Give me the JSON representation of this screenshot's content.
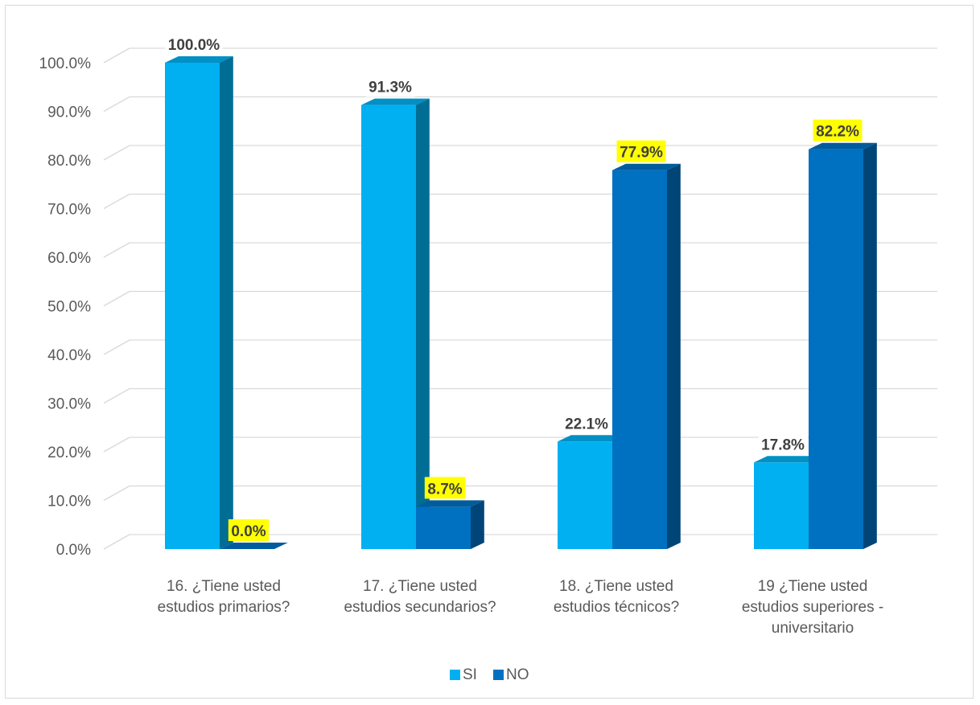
{
  "chart_data": {
    "type": "bar",
    "style": "3d-clustered-column",
    "categories": [
      [
        "16.   ¿Tiene usted",
        "estudios primarios?"
      ],
      [
        "17.   ¿Tiene usted",
        "estudios secundarios?"
      ],
      [
        "18.   ¿Tiene usted",
        "estudios técnicos?"
      ],
      [
        "19 ¿Tiene usted",
        "estudios superiores -",
        "universitario"
      ]
    ],
    "series": [
      {
        "name": "SI",
        "values": [
          100.0,
          91.3,
          22.1,
          17.8
        ],
        "color": "#00b0f0"
      },
      {
        "name": "NO",
        "values": [
          0.0,
          8.7,
          77.9,
          82.2
        ],
        "color": "#0070c0"
      }
    ],
    "data_labels": {
      "SI": [
        "100.0%",
        "91.3%",
        "22.1%",
        "17.8%"
      ],
      "NO": [
        "0.0%",
        "8.7%",
        "77.9%",
        "82.2%"
      ]
    },
    "label_highlight": "#ffff00",
    "y_ticks": [
      "0.0%",
      "10.0%",
      "20.0%",
      "30.0%",
      "40.0%",
      "50.0%",
      "60.0%",
      "70.0%",
      "80.0%",
      "90.0%",
      "100.0%"
    ],
    "ylim": [
      0,
      100
    ],
    "grid": true,
    "legend_position": "bottom",
    "title": "",
    "xlabel": "",
    "ylabel": ""
  }
}
